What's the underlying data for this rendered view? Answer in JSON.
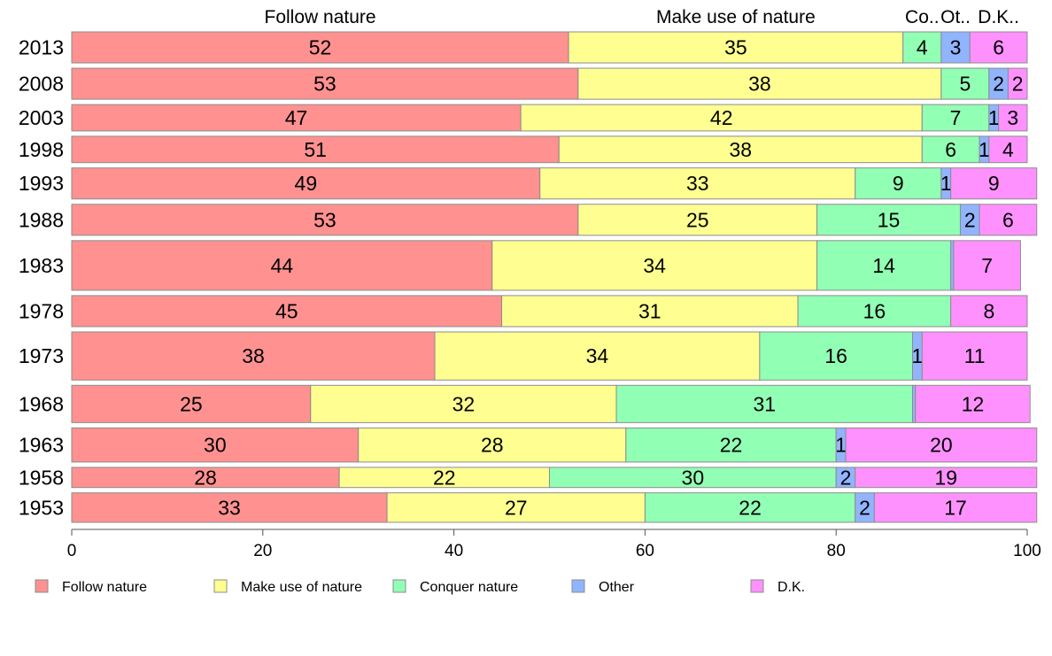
{
  "chart_data": {
    "type": "bar",
    "orientation": "horizontal",
    "stacked": true,
    "categories": [
      "2013",
      "2008",
      "2003",
      "1998",
      "1993",
      "1988",
      "1983",
      "1978",
      "1973",
      "1968",
      "1963",
      "1958",
      "1953"
    ],
    "bar_weights": [
      1.0,
      1.0,
      0.85,
      0.85,
      1.0,
      1.0,
      1.6,
      1.0,
      1.55,
      1.2,
      1.1,
      0.65,
      0.95
    ],
    "series": [
      {
        "name": "Follow nature",
        "short_label": "Follow nature",
        "color": "#FF9191",
        "values": [
          52,
          53,
          47,
          51,
          49,
          53,
          44,
          45,
          38,
          25,
          30,
          28,
          33
        ]
      },
      {
        "name": "Make use of nature",
        "short_label": "Make use of nature",
        "color": "#FFFF91",
        "values": [
          35,
          38,
          42,
          38,
          33,
          25,
          34,
          31,
          34,
          32,
          28,
          22,
          27
        ]
      },
      {
        "name": "Conquer nature",
        "short_label": "Co..",
        "color": "#91FFB4",
        "values": [
          4,
          5,
          7,
          6,
          9,
          15,
          14,
          16,
          16,
          31,
          22,
          30,
          22
        ]
      },
      {
        "name": "Other",
        "short_label": "Ot..",
        "color": "#91B4FF",
        "values": [
          3,
          2,
          1,
          1,
          1,
          2,
          0.3,
          0,
          1,
          0.3,
          1,
          2,
          2
        ]
      },
      {
        "name": "D.K.",
        "short_label": "D.K..",
        "color": "#FF91FF",
        "values": [
          6,
          2,
          3,
          4,
          9,
          6,
          7,
          8,
          11,
          12,
          20,
          19,
          17
        ]
      }
    ],
    "data_labels": [
      [
        "52",
        "35",
        "4",
        "3",
        "6"
      ],
      [
        "53",
        "38",
        "5",
        "2",
        "2"
      ],
      [
        "47",
        "42",
        "7",
        "1",
        "3"
      ],
      [
        "51",
        "38",
        "6",
        "1",
        "4"
      ],
      [
        "49",
        "33",
        "9",
        "1",
        "9"
      ],
      [
        "53",
        "25",
        "15",
        "2",
        "6"
      ],
      [
        "44",
        "34",
        "14",
        "",
        "7"
      ],
      [
        "45",
        "31",
        "16",
        "",
        "8"
      ],
      [
        "38",
        "34",
        "16",
        "1",
        "11"
      ],
      [
        "25",
        "32",
        "31",
        "",
        "12"
      ],
      [
        "30",
        "28",
        "22",
        "1",
        "20"
      ],
      [
        "28",
        "22",
        "30",
        "2",
        "19"
      ],
      [
        "33",
        "27",
        "22",
        "2",
        "17"
      ]
    ],
    "xlim": [
      0,
      100
    ],
    "xticks": [
      0,
      20,
      40,
      60,
      80,
      100
    ],
    "xlabel": "",
    "ylabel": "",
    "title": "",
    "grid": false,
    "legend_position": "bottom"
  }
}
